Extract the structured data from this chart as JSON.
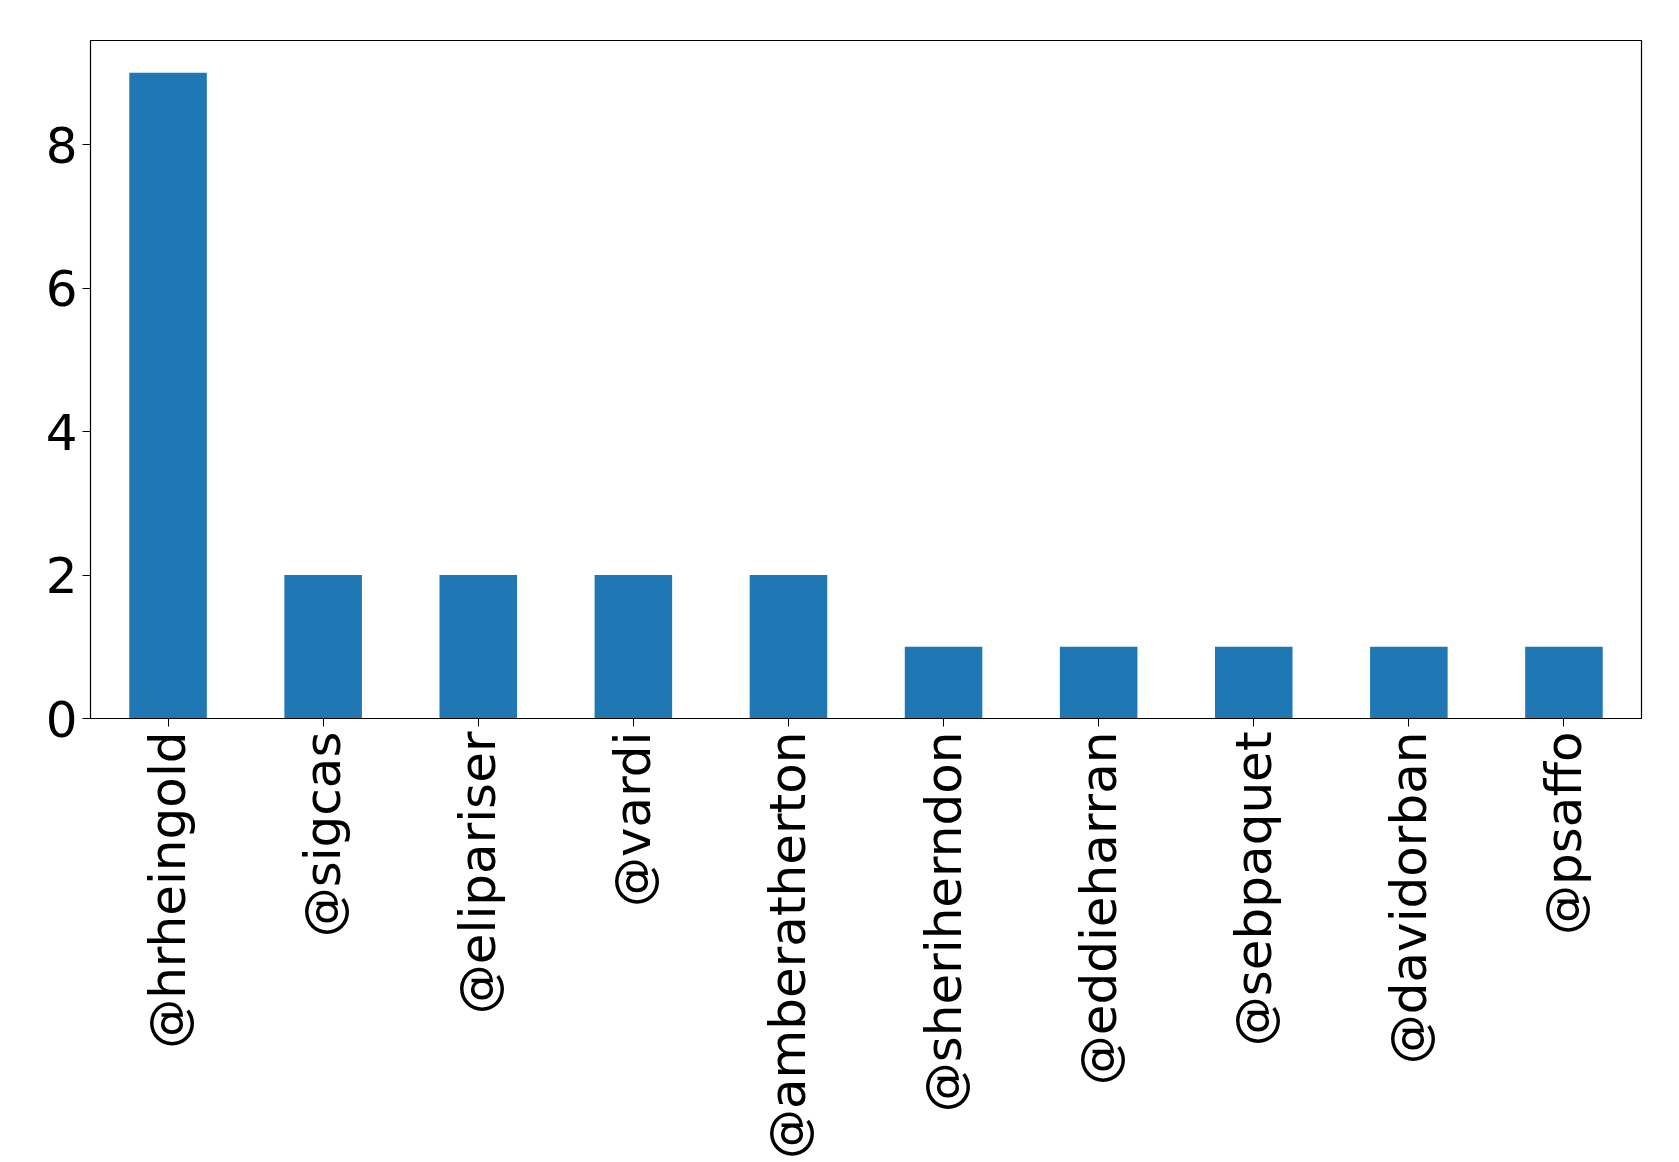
{
  "chart_data": {
    "type": "bar",
    "categories": [
      "@hrheingold",
      "@sigcas",
      "@elipariser",
      "@vardi",
      "@amberatherton",
      "@sheriherndon",
      "@eddieharran",
      "@sebpaquet",
      "@davidorban",
      "@psaffo"
    ],
    "values": [
      9,
      2,
      2,
      2,
      2,
      1,
      1,
      1,
      1,
      1
    ],
    "color": "#1f77b4",
    "ylim": [
      0,
      9.45
    ],
    "yticks": [
      0,
      2,
      4,
      6,
      8
    ],
    "grid": false
  }
}
